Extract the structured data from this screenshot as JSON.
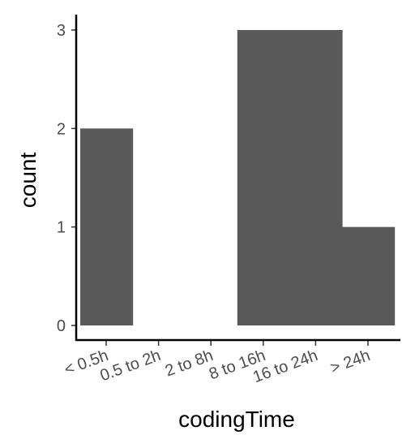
{
  "chart_data": {
    "type": "bar",
    "title": "",
    "xlabel": "codingTime",
    "ylabel": "count",
    "categories": [
      "< 0.5h",
      "0.5 to 2h",
      "2 to 8h",
      "8 to 16h",
      "16 to 24h",
      "> 24h"
    ],
    "values": [
      2,
      0,
      0,
      3,
      3,
      1
    ],
    "ylim": [
      0,
      3
    ],
    "yticks": [
      0,
      1,
      2,
      3
    ],
    "grid": false,
    "legend": "none",
    "bar_color": "#595959",
    "axis_color": "#000000",
    "tick_color": "#333333"
  }
}
